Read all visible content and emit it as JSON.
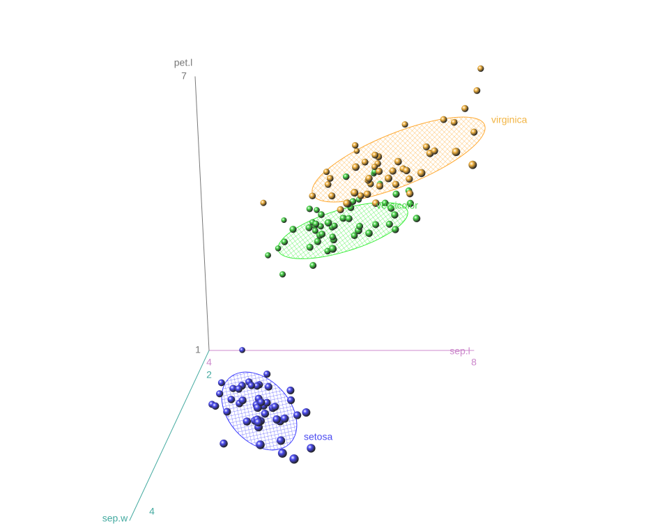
{
  "chart_data": {
    "type": "scatter3d",
    "xlabel": "sep.l",
    "ylabel": "sep.w",
    "zlabel": "pet.l",
    "xlim": [
      4,
      8
    ],
    "ylim": [
      2,
      4
    ],
    "zlim": [
      1,
      7
    ],
    "xticks": [
      4,
      8
    ],
    "yticks": [
      2,
      4
    ],
    "zticks": [
      1,
      7
    ],
    "series": [
      {
        "name": "setosa",
        "color": "#4b4bf0",
        "x": [
          5.1,
          4.9,
          4.7,
          4.6,
          5.0,
          5.4,
          4.6,
          5.0,
          4.4,
          4.9,
          5.4,
          4.8,
          4.8,
          4.3,
          5.8,
          5.7,
          5.4,
          5.1,
          5.7,
          5.1,
          5.4,
          5.1,
          4.6,
          5.1,
          4.8,
          5.0,
          5.0,
          5.2,
          5.2,
          4.7,
          4.8,
          5.4,
          5.2,
          5.5,
          4.9,
          5.0,
          5.5,
          4.9,
          4.4,
          5.1,
          5.0,
          4.5,
          4.4,
          5.0,
          5.1,
          4.8,
          5.1,
          4.6,
          5.3,
          5.0
        ],
        "y": [
          3.5,
          3.0,
          3.2,
          3.1,
          3.6,
          3.9,
          3.4,
          3.4,
          2.9,
          3.1,
          3.7,
          3.4,
          3.0,
          3.0,
          4.0,
          4.4,
          3.9,
          3.5,
          3.8,
          3.8,
          3.4,
          3.7,
          3.6,
          3.3,
          3.4,
          3.0,
          3.4,
          3.5,
          3.4,
          3.2,
          3.1,
          3.4,
          4.1,
          4.2,
          3.1,
          3.2,
          3.5,
          3.6,
          3.0,
          3.4,
          3.5,
          2.3,
          3.2,
          3.5,
          3.8,
          3.0,
          3.8,
          3.2,
          3.7,
          3.3
        ],
        "z": [
          1.4,
          1.4,
          1.3,
          1.5,
          1.4,
          1.7,
          1.4,
          1.5,
          1.4,
          1.5,
          1.5,
          1.6,
          1.4,
          1.1,
          1.2,
          1.5,
          1.3,
          1.4,
          1.7,
          1.5,
          1.7,
          1.5,
          1.0,
          1.7,
          1.9,
          1.6,
          1.6,
          1.5,
          1.4,
          1.6,
          1.6,
          1.5,
          1.5,
          1.4,
          1.5,
          1.2,
          1.3,
          1.4,
          1.3,
          1.5,
          1.3,
          1.3,
          1.3,
          1.6,
          1.9,
          1.4,
          1.6,
          1.4,
          1.5,
          1.4
        ]
      },
      {
        "name": "versicolor",
        "color": "#4cd64c",
        "x": [
          7.0,
          6.4,
          6.9,
          5.5,
          6.5,
          5.7,
          6.3,
          4.9,
          6.6,
          5.2,
          5.0,
          5.9,
          6.0,
          6.1,
          5.6,
          6.7,
          5.6,
          5.8,
          6.2,
          5.6,
          5.9,
          6.1,
          6.3,
          6.1,
          6.4,
          6.6,
          6.8,
          6.7,
          6.0,
          5.7,
          5.5,
          5.5,
          5.8,
          6.0,
          5.4,
          6.0,
          6.7,
          6.3,
          5.6,
          5.5,
          5.5,
          6.1,
          5.8,
          5.0,
          5.6,
          5.7,
          5.7,
          6.2,
          5.1,
          5.7
        ],
        "y": [
          3.2,
          3.2,
          3.1,
          2.3,
          2.8,
          2.8,
          3.3,
          2.4,
          2.9,
          2.7,
          2.0,
          3.0,
          2.2,
          2.9,
          2.9,
          3.1,
          3.0,
          2.7,
          2.2,
          2.5,
          3.2,
          2.8,
          2.5,
          2.8,
          2.9,
          3.0,
          2.8,
          3.0,
          2.9,
          2.6,
          2.4,
          2.4,
          2.7,
          2.7,
          3.0,
          3.4,
          3.1,
          2.3,
          3.0,
          2.5,
          2.6,
          3.0,
          2.6,
          2.3,
          2.7,
          3.0,
          2.9,
          2.9,
          2.5,
          2.8
        ],
        "z": [
          4.7,
          4.5,
          4.9,
          4.0,
          4.6,
          4.5,
          4.7,
          3.3,
          4.6,
          3.9,
          3.5,
          4.2,
          4.0,
          4.7,
          3.6,
          4.4,
          4.5,
          4.1,
          4.5,
          3.9,
          4.8,
          4.0,
          4.9,
          4.7,
          4.3,
          4.4,
          4.8,
          5.0,
          4.5,
          3.5,
          3.8,
          3.7,
          3.9,
          5.1,
          4.5,
          4.5,
          4.7,
          4.4,
          4.1,
          4.0,
          4.4,
          4.6,
          4.0,
          3.3,
          4.2,
          4.2,
          4.2,
          4.3,
          3.0,
          4.1
        ]
      },
      {
        "name": "virginica",
        "color": "#f2b443",
        "x": [
          6.3,
          5.8,
          7.1,
          6.3,
          6.5,
          7.6,
          4.9,
          7.3,
          6.7,
          7.2,
          6.5,
          6.4,
          6.8,
          5.7,
          5.8,
          6.4,
          6.5,
          7.7,
          7.7,
          6.0,
          6.9,
          5.6,
          7.7,
          6.3,
          6.7,
          7.2,
          6.2,
          6.1,
          6.4,
          7.2,
          7.4,
          7.9,
          6.4,
          6.3,
          6.1,
          7.7,
          6.3,
          6.4,
          6.0,
          6.9,
          6.7,
          6.9,
          5.8,
          6.8,
          6.7,
          6.7,
          6.3,
          6.5,
          6.2,
          5.9
        ],
        "y": [
          3.3,
          2.7,
          3.0,
          2.9,
          3.0,
          3.0,
          2.5,
          2.9,
          2.5,
          3.6,
          3.2,
          2.7,
          3.0,
          2.5,
          2.8,
          3.2,
          3.0,
          3.8,
          2.6,
          2.2,
          3.2,
          2.8,
          2.8,
          2.7,
          3.3,
          3.2,
          2.8,
          3.0,
          2.8,
          3.0,
          2.8,
          3.8,
          2.8,
          2.8,
          2.6,
          3.0,
          3.4,
          3.1,
          3.0,
          3.1,
          3.1,
          3.1,
          2.7,
          3.2,
          3.3,
          3.0,
          2.5,
          3.0,
          3.4,
          3.0
        ],
        "z": [
          6.0,
          5.1,
          5.9,
          5.6,
          5.8,
          6.6,
          4.5,
          6.3,
          5.8,
          6.1,
          5.1,
          5.3,
          5.5,
          5.0,
          5.1,
          5.3,
          5.5,
          6.7,
          6.9,
          5.0,
          5.7,
          4.9,
          6.7,
          4.9,
          5.7,
          6.0,
          4.8,
          4.9,
          5.6,
          5.8,
          6.1,
          6.4,
          5.6,
          5.1,
          5.6,
          6.1,
          5.6,
          5.5,
          4.8,
          5.4,
          5.6,
          5.1,
          5.1,
          5.9,
          5.7,
          5.2,
          5.0,
          5.2,
          5.4,
          5.1
        ]
      }
    ]
  }
}
